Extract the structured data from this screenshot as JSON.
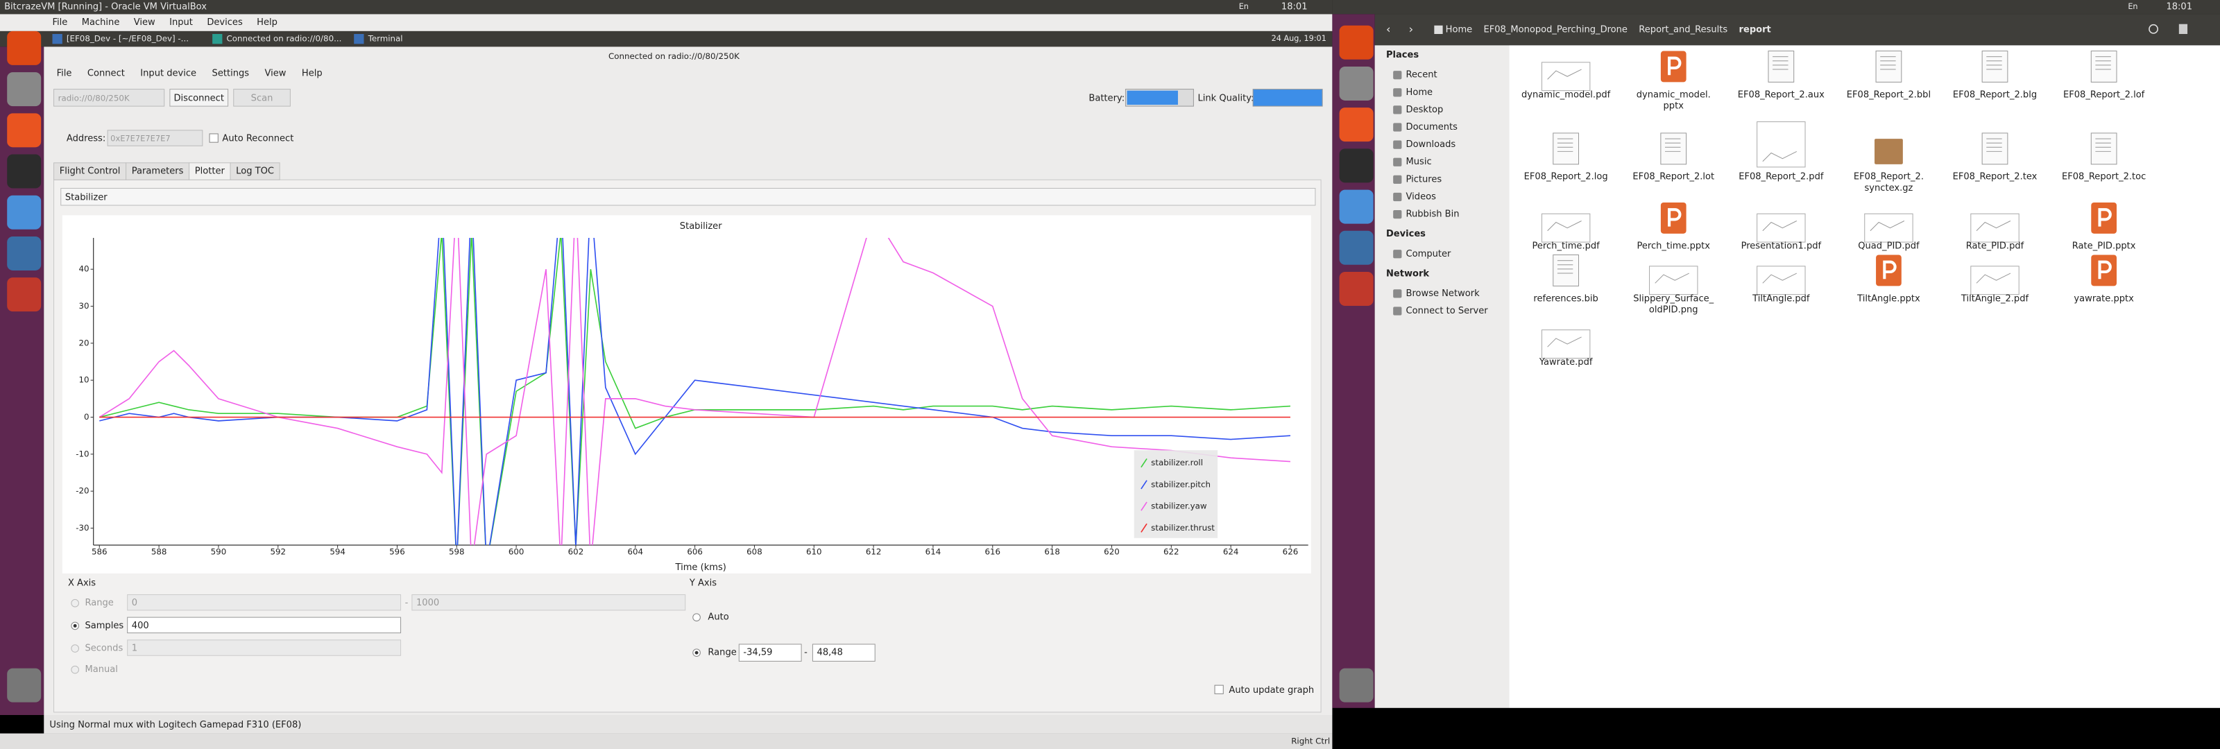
{
  "host_bar": {
    "title": "BitcrazeVM [Running] - Oracle VM VirtualBox",
    "keyboard": "En",
    "time": "18:01"
  },
  "vm_menu": [
    "File",
    "Machine",
    "View",
    "Input",
    "Devices",
    "Help"
  ],
  "guest_bar": {
    "tabs": [
      "[EF08_Dev - [~/EF08_Dev] -...",
      "Connected on radio://0/80...",
      "Terminal"
    ],
    "date": "24 Aug, 19:01"
  },
  "client": {
    "title": "Connected on radio://0/80/250K",
    "menu": [
      "File",
      "Connect",
      "Input device",
      "Settings",
      "View",
      "Help"
    ],
    "uri": "radio://0/80/250K",
    "connect_buttons": [
      "Disconnect",
      "Scan"
    ],
    "battery": "Battery:",
    "link_quality": "Link Quality:",
    "address_label": "Address:",
    "address": "0xE7E7E7E7E7",
    "auto_reconnect": "Auto Reconnect",
    "tabs": [
      "Flight Control",
      "Parameters",
      "Plotter",
      "Log TOC"
    ],
    "plot_config": "Stabilizer",
    "status": "Using Normal mux with Logitech Gamepad F310 (EF08)"
  },
  "plot": {
    "type": "line",
    "title": "Stabilizer",
    "x_label": "Time (kms)",
    "x": [
      586,
      587,
      588,
      588.5,
      589,
      590,
      592,
      594,
      596,
      597,
      597.5,
      598,
      598.5,
      599,
      600,
      601,
      601.5,
      602,
      602.5,
      603,
      604,
      605,
      606,
      608,
      610,
      612,
      613,
      614,
      616,
      617,
      618,
      620,
      622,
      624,
      626
    ],
    "series": [
      {
        "name": "stabilizer.roll",
        "color": "#3ccf3c",
        "values": [
          0,
          2,
          4,
          3,
          2,
          1,
          1,
          0,
          0,
          3,
          50,
          -40,
          50,
          -40,
          7,
          12,
          50,
          -35,
          40,
          15,
          -3,
          0,
          2,
          2,
          2,
          3,
          2,
          3,
          3,
          2,
          3,
          2,
          3,
          2,
          3
        ]
      },
      {
        "name": "stabilizer.pitch",
        "color": "#3050f0",
        "values": [
          -1,
          1,
          0,
          1,
          0,
          -1,
          0,
          0,
          -1,
          2,
          60,
          -40,
          60,
          -40,
          10,
          12,
          60,
          -35,
          60,
          8,
          -10,
          0,
          10,
          8,
          6,
          4,
          3,
          2,
          0,
          -3,
          -4,
          -5,
          -5,
          -6,
          -5
        ]
      },
      {
        "name": "stabilizer.yaw",
        "color": "#f060e8",
        "values": [
          0,
          5,
          15,
          18,
          14,
          5,
          0,
          -3,
          -8,
          -10,
          -15,
          60,
          -40,
          -10,
          -5,
          40,
          -40,
          60,
          -40,
          5,
          5,
          3,
          2,
          1,
          0,
          55,
          42,
          39,
          30,
          5,
          -5,
          -8,
          -9,
          -11,
          -12
        ]
      },
      {
        "name": "stabilizer.thrust",
        "color": "#f03030",
        "values": [
          0,
          0,
          0,
          0,
          0,
          0,
          0,
          0,
          0,
          0,
          0,
          0,
          0,
          0,
          0,
          0,
          0,
          0,
          0,
          0,
          0,
          0,
          0,
          0,
          0,
          0,
          0,
          0,
          0,
          0,
          0,
          0,
          0,
          0,
          0
        ]
      }
    ],
    "xlim": [
      585.8,
      626.6
    ],
    "ylim": [
      -34.59,
      48.48
    ],
    "xticks": [
      586,
      588,
      590,
      592,
      594,
      596,
      598,
      600,
      602,
      604,
      606,
      608,
      610,
      612,
      614,
      616,
      618,
      620,
      622,
      624,
      626
    ],
    "yticks": [
      -30,
      -20,
      -10,
      0,
      10,
      20,
      30,
      40
    ],
    "grid": false,
    "legend": "lower right"
  },
  "x_axis_panel": {
    "title": "X Axis",
    "range": "Range",
    "range_from": "0",
    "dash": "-",
    "range_to": "1000",
    "samples": "Samples",
    "samples_value": "400",
    "seconds": "Seconds",
    "seconds_value": "1",
    "manual": "Manual"
  },
  "y_axis_panel": {
    "title": "Y Axis",
    "auto": "Auto",
    "range": "Range",
    "range_from": "-34,59",
    "dash": "-",
    "range_to": "48,48",
    "auto_update": "Auto update graph"
  },
  "vm_status": {
    "host_key": "Right Ctrl"
  },
  "file_manager": {
    "keyboard": "En",
    "time": "18:01",
    "breadcrumb": [
      "Home",
      "EF08_Monopod_Perching_Drone",
      "Report_and_Results",
      "report"
    ],
    "sidebar": [
      {
        "heading": "Places",
        "items": [
          "Recent",
          "Home",
          "Desktop",
          "Documents",
          "Downloads",
          "Music",
          "Pictures",
          "Videos",
          "Rubbish Bin"
        ]
      },
      {
        "heading": "Devices",
        "items": [
          "Computer"
        ]
      },
      {
        "heading": "Network",
        "items": [
          "Browse Network",
          "Connect to Server"
        ]
      }
    ],
    "files": [
      [
        "dynamic_model.pdf"
      ],
      [
        "dynamic_model.",
        "pptx"
      ],
      [
        "EF08_Report_2.aux"
      ],
      [
        "EF08_Report_2.bbl"
      ],
      [
        "EF08_Report_2.blg"
      ],
      [
        "EF08_Report_2.lof"
      ],
      [
        "EF08_Report_2.log"
      ],
      [
        "EF08_Report_2.lot"
      ],
      [
        "EF08_Report_2.pdf"
      ],
      [
        "EF08_Report_2.",
        "synctex.gz"
      ],
      [
        "EF08_Report_2.tex"
      ],
      [
        "EF08_Report_2.toc"
      ],
      [
        "Perch_time.pdf"
      ],
      [
        "Perch_time.pptx"
      ],
      [
        "Presentation1.pdf"
      ],
      [
        "Quad_PID.pdf"
      ],
      [
        "Rate_PID.pdf"
      ],
      [
        "Rate_PID.pptx"
      ],
      [
        "references.bib"
      ],
      [
        "Slippery_Surface_",
        "oldPID.png"
      ],
      [
        "TiltAngle.pdf"
      ],
      [
        "TiltAngle.pptx"
      ],
      [
        "TiltAngle_2.pdf"
      ],
      [
        "yawrate.pptx"
      ],
      [
        "Yawrate.pdf"
      ]
    ]
  }
}
